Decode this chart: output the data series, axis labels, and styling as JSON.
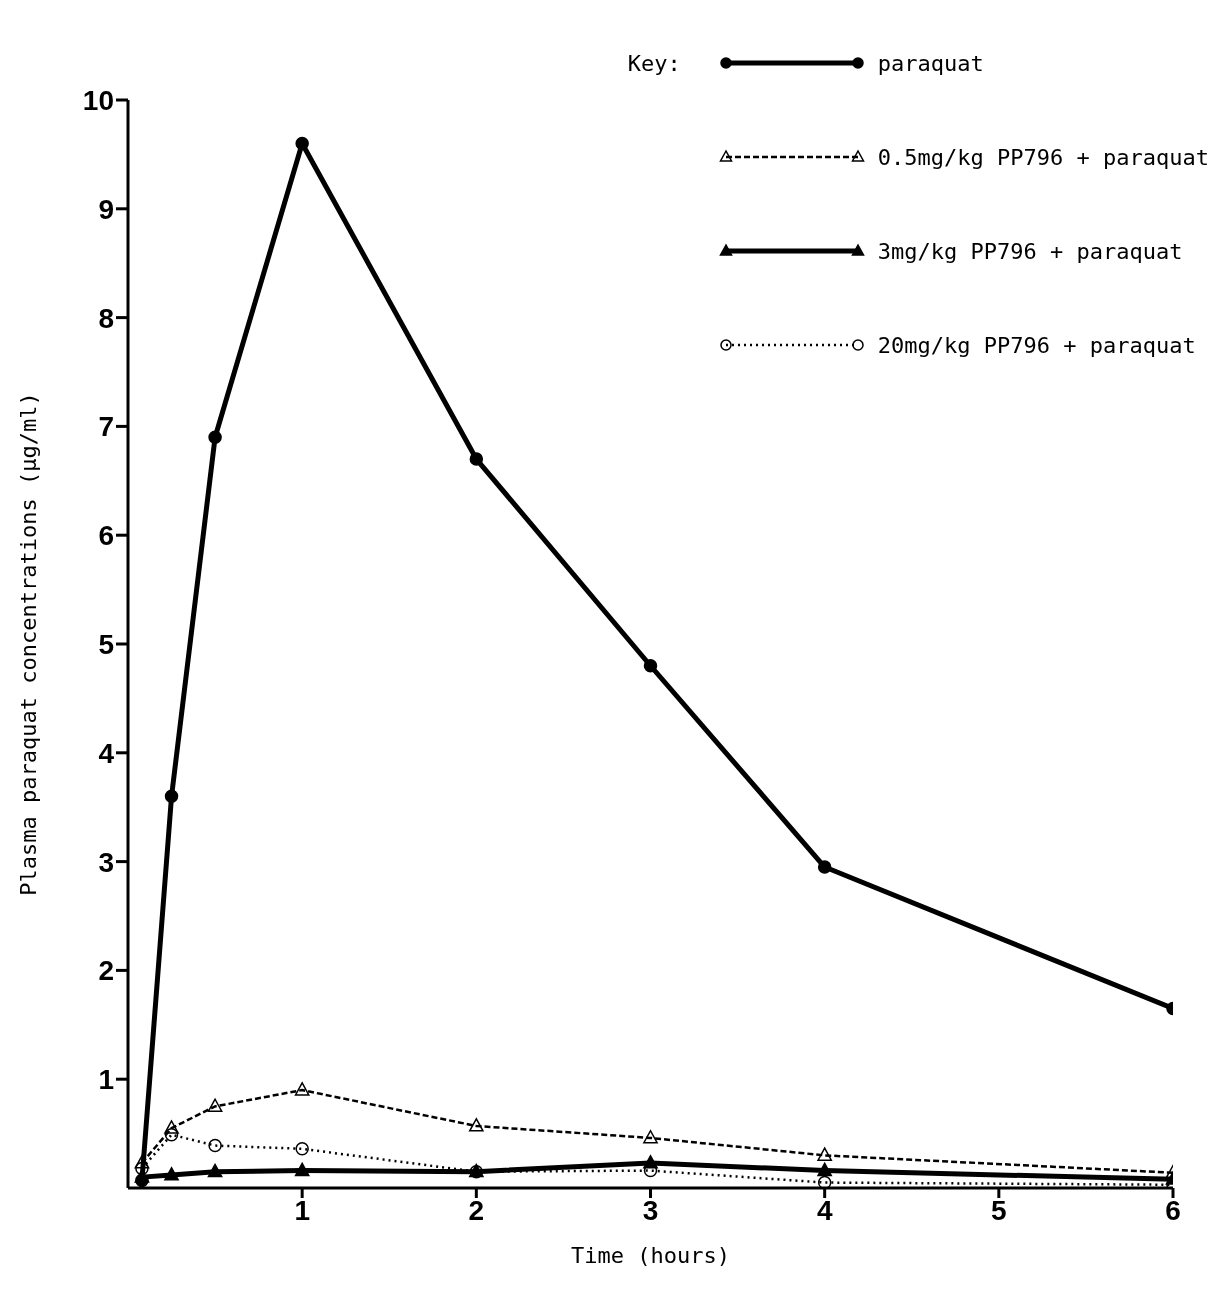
{
  "chart_data": {
    "type": "line",
    "xlabel": "Time (hours)",
    "ylabel": "Plasma paraquat concentrations (μg/ml)",
    "legend_title": "Key:",
    "xlim": [
      0,
      6
    ],
    "xticks": [
      1,
      2,
      3,
      4,
      5,
      6
    ],
    "ylim": [
      0,
      10
    ],
    "yticks": [
      1,
      2,
      3,
      4,
      5,
      6,
      7,
      8,
      9,
      10
    ],
    "legend": "top right",
    "grid": false,
    "x": [
      0.08,
      0.25,
      0.5,
      1,
      2,
      3,
      4,
      6
    ],
    "series": [
      {
        "name": "paraquat",
        "color": "#000000",
        "marker": "circle",
        "line_style": "solid",
        "values": [
          0.07,
          3.6,
          6.9,
          9.6,
          6.7,
          4.8,
          2.95,
          1.65
        ]
      },
      {
        "name": "0.5mg/kg PP796 + paraquat",
        "color": "#000000",
        "marker": "triangle",
        "line_style": "dashed",
        "values": [
          0.23,
          0.55,
          0.75,
          0.9,
          0.57,
          0.46,
          0.3,
          0.14
        ]
      },
      {
        "name": "3mg/kg PP796 + paraquat",
        "color": "#000000",
        "marker": "triangle",
        "line_style": "solid",
        "values": [
          0.1,
          0.12,
          0.15,
          0.16,
          0.15,
          0.23,
          0.16,
          0.08
        ]
      },
      {
        "name": "20mg/kg PP796 + paraquat",
        "color": "#000000",
        "marker": "circle",
        "line_style": "dotted",
        "values": [
          0.18,
          0.49,
          0.39,
          0.36,
          0.15,
          0.16,
          0.05,
          0.03
        ]
      }
    ]
  }
}
